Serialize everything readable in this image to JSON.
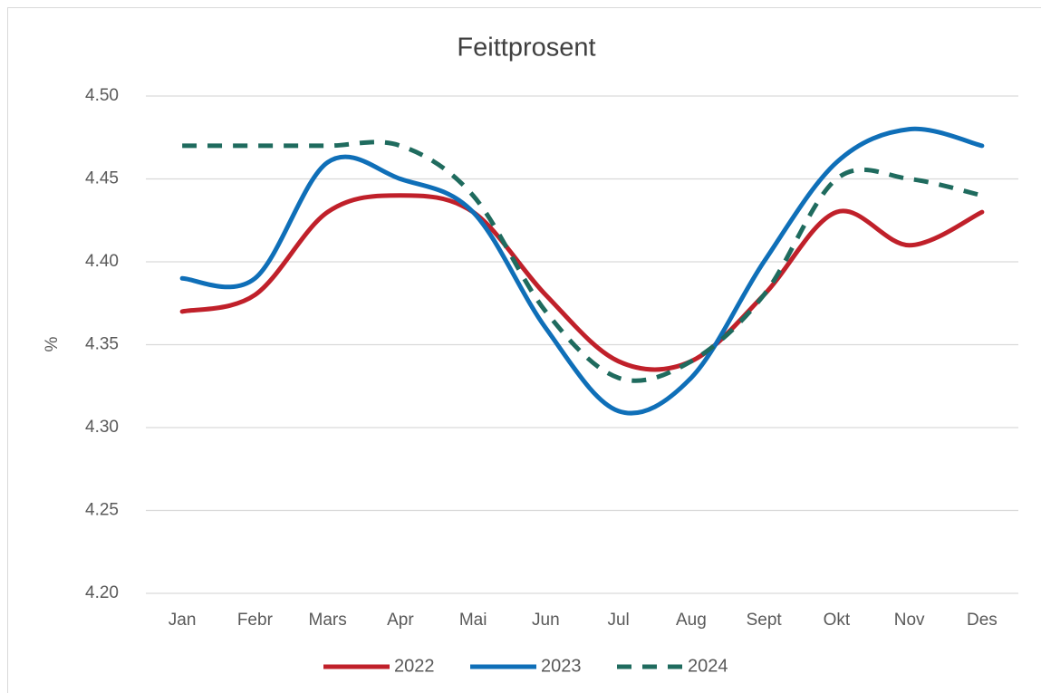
{
  "chart_data": {
    "type": "line",
    "title": "Feittprosent",
    "y_label": "%",
    "categories": [
      "Jan",
      "Febr",
      "Mars",
      "Apr",
      "Mai",
      "Jun",
      "Jul",
      "Aug",
      "Sept",
      "Okt",
      "Nov",
      "Des"
    ],
    "series": [
      {
        "name": "2022",
        "color": "#c0202a",
        "dashed": false,
        "values": [
          4.37,
          4.38,
          4.43,
          4.44,
          4.43,
          4.38,
          4.34,
          4.34,
          4.38,
          4.43,
          4.41,
          4.43
        ]
      },
      {
        "name": "2023",
        "color": "#0f6fb8",
        "dashed": false,
        "values": [
          4.39,
          4.39,
          4.46,
          4.45,
          4.43,
          4.36,
          4.31,
          4.33,
          4.4,
          4.46,
          4.48,
          4.47
        ]
      },
      {
        "name": "2024",
        "color": "#1f6b5e",
        "dashed": true,
        "values": [
          4.47,
          4.47,
          4.47,
          4.47,
          4.44,
          4.37,
          4.33,
          4.34,
          4.38,
          4.45,
          4.45,
          4.44
        ]
      }
    ],
    "ylim": [
      4.2,
      4.5
    ],
    "yticks": [
      {
        "value": 4.2,
        "label": "4.20"
      },
      4.25,
      {
        "value": 4.3,
        "label": "4.30"
      },
      4.35,
      {
        "value": 4.4,
        "label": "4.40"
      },
      4.45,
      {
        "value": 4.5,
        "label": "4.50"
      }
    ],
    "grid": true,
    "smooth": true,
    "legend": "bottom"
  }
}
